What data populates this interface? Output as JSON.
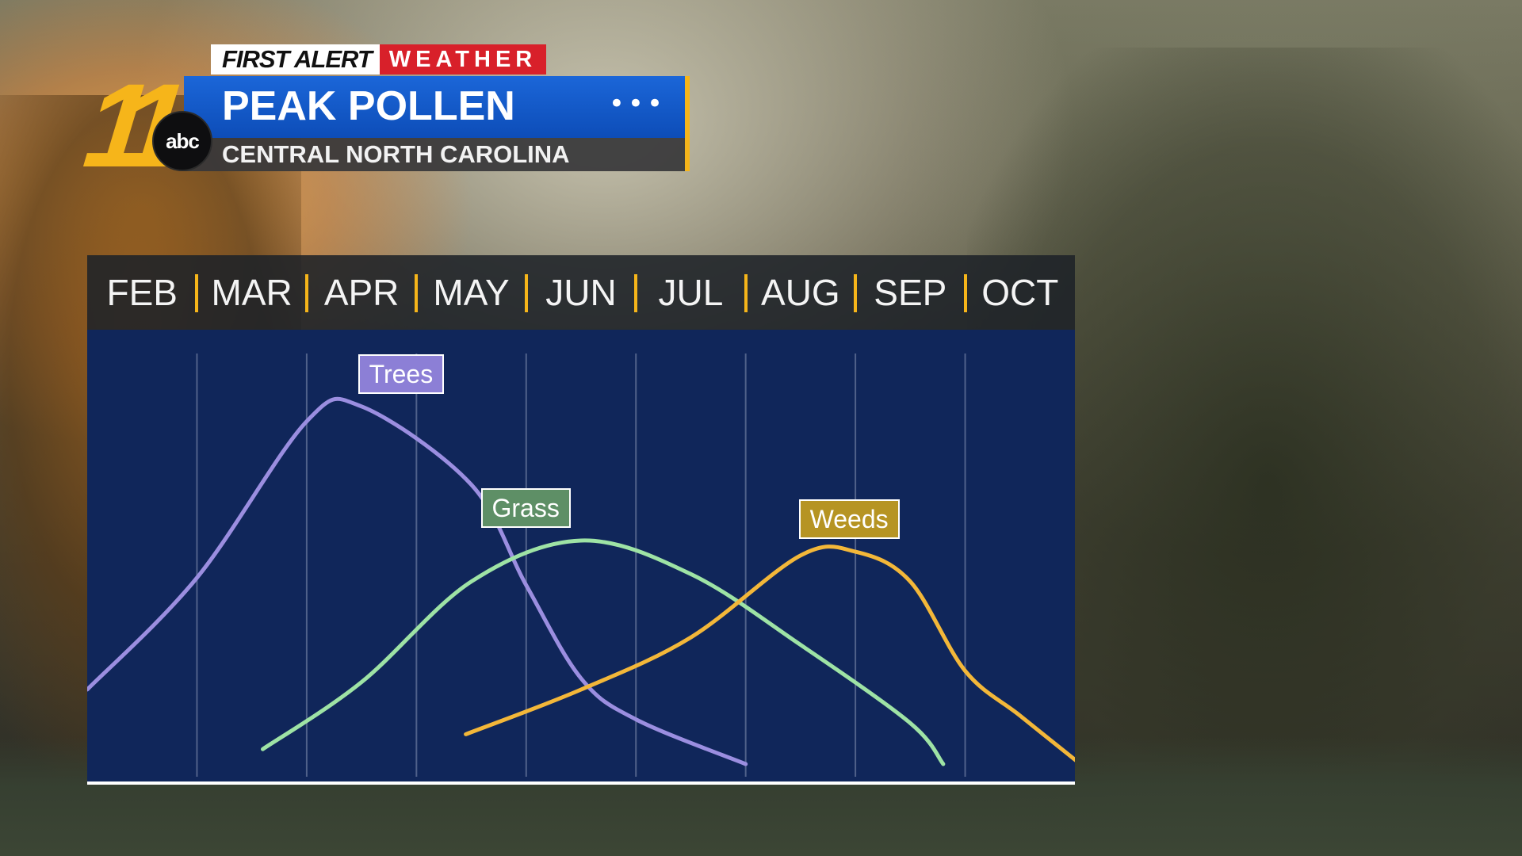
{
  "brand": {
    "station_number": "11",
    "network_logo": "abc",
    "first_alert": "FIRST ALERT",
    "weather": "WEATHER"
  },
  "header": {
    "title": "PEAK POLLEN",
    "subtitle": "CENTRAL NORTH CAROLINA",
    "menu_dots": "•••"
  },
  "colors": {
    "title_bar": "#0d4db8",
    "brand_red": "#d8202a",
    "accent_gold": "#f6b51a",
    "plot_background": "#10265a"
  },
  "chart_data": {
    "type": "line",
    "title": "PEAK POLLEN",
    "subtitle": "CENTRAL NORTH CAROLINA",
    "x_categories": [
      "FEB",
      "MAR",
      "APR",
      "MAY",
      "JUN",
      "JUL",
      "AUG",
      "SEP",
      "OCT"
    ],
    "xlabel": "",
    "ylabel": "",
    "ylim": [
      0,
      100
    ],
    "grid": "vertical",
    "legend": "inline labels above curve peaks",
    "series": [
      {
        "name": "Trees",
        "color": "#9b8ee0",
        "label_bg": "#8c7fd6",
        "points": [
          [
            -0.5,
            20
          ],
          [
            0.5,
            50
          ],
          [
            1.5,
            92
          ],
          [
            2.0,
            96
          ],
          [
            3.0,
            75
          ],
          [
            3.5,
            48
          ],
          [
            4.0,
            23
          ],
          [
            4.5,
            12
          ],
          [
            5.5,
            0
          ]
        ]
      },
      {
        "name": "Grass",
        "color": "#9ee3a5",
        "label_bg": "#5e8f66",
        "points": [
          [
            1.1,
            4
          ],
          [
            2.0,
            22
          ],
          [
            3.0,
            49
          ],
          [
            4.0,
            60
          ],
          [
            5.0,
            51
          ],
          [
            6.0,
            32
          ],
          [
            7.0,
            11
          ],
          [
            7.3,
            0
          ]
        ]
      },
      {
        "name": "Weeds",
        "color": "#f3b739",
        "label_bg": "#b69423",
        "points": [
          [
            2.95,
            8
          ],
          [
            4.0,
            20
          ],
          [
            5.0,
            34
          ],
          [
            6.0,
            56
          ],
          [
            6.5,
            57
          ],
          [
            7.0,
            49
          ],
          [
            7.5,
            25
          ],
          [
            8.0,
            13
          ],
          [
            8.55,
            0
          ]
        ]
      }
    ]
  }
}
